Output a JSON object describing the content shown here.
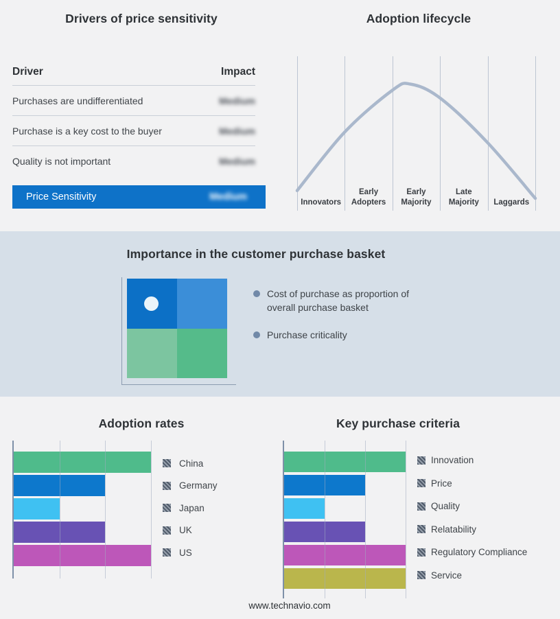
{
  "footer": {
    "text": "www.technavio.com"
  },
  "colors": {
    "page_bg": "#f2f2f3",
    "band_bg": "#d6dfe8",
    "accent_blue": "#0e72c8",
    "grid_line": "#bcc5d2",
    "axis_line": "#7e90a8",
    "curve": "#aab8cc",
    "bullet_dot": "#7189a8",
    "hatch_dark": "#4f5a69",
    "hatch_light": "#97a0ac",
    "quadrant_marker": "#eaf4fa"
  },
  "drivers_table": {
    "title": "Drivers of price sensitivity",
    "col_driver": "Driver",
    "col_impact": "Impact",
    "impact_blurred": true,
    "rows": [
      {
        "driver": "Purchases are undifferentiated",
        "impact": "Medium"
      },
      {
        "driver": "Purchase is a key cost to the buyer",
        "impact": "Medium"
      },
      {
        "driver": "Quality is not important",
        "impact": "Medium"
      }
    ],
    "highlight": {
      "driver": "Price Sensitivity",
      "impact": "Medium"
    }
  },
  "basket": {
    "title": "Importance in the customer purchase basket",
    "bullets": [
      "Cost of purchase as proportion of overall purchase basket",
      "Purchase criticality"
    ],
    "quadrant": {
      "top_left": "#0c70c6",
      "top_right": "#3b8ed8",
      "bottom_left": "#7cc5a0",
      "bottom_right": "#55bb8a",
      "marker": "white dot in top-left quadrant"
    }
  },
  "chart_data": [
    {
      "id": "adoption-lifecycle",
      "type": "line",
      "title": "Adoption lifecycle",
      "categories": [
        "Innovators",
        "Early Adopters",
        "Early Majority",
        "Late Majority",
        "Laggards"
      ],
      "description": "Bell-shaped adoption curve over five adopter segments; axes unlabeled",
      "gridlines": "6 vertical segment boundaries",
      "curve_points_norm": [
        [
          0,
          0.13
        ],
        [
          0.2,
          0.51
        ],
        [
          0.4,
          0.78
        ],
        [
          0.475,
          0.82
        ],
        [
          0.6,
          0.73
        ],
        [
          0.8,
          0.44
        ],
        [
          1,
          0.08
        ]
      ]
    },
    {
      "id": "adoption-rates",
      "type": "bar",
      "orientation": "horizontal",
      "title": "Adoption rates",
      "categories": [
        "China",
        "Germany",
        "Japan",
        "UK",
        "US"
      ],
      "values": [
        3,
        2,
        1,
        2,
        3
      ],
      "value_axis": {
        "min": 0,
        "max": 3,
        "gridlines": [
          0,
          1,
          2,
          3
        ],
        "tick_labels_shown": false
      },
      "colors": [
        "#4fbb8b",
        "#0d78cc",
        "#3fc1f2",
        "#6852b4",
        "#bd57b9"
      ],
      "legend_position": "right",
      "note": "bar lengths estimated in gridline units; value axis not labeled"
    },
    {
      "id": "key-purchase-criteria",
      "type": "bar",
      "orientation": "horizontal",
      "title": "Key purchase criteria",
      "categories": [
        "Innovation",
        "Price",
        "Quality",
        "Relatability",
        "Regulatory Compliance",
        "Service"
      ],
      "values": [
        3,
        2,
        1,
        2,
        3,
        3
      ],
      "value_axis": {
        "min": 0,
        "max": 3,
        "gridlines": [
          0,
          1,
          2,
          3
        ],
        "tick_labels_shown": false
      },
      "colors": [
        "#4fbb8b",
        "#0d78cc",
        "#3fc1f2",
        "#6852b4",
        "#bd57b9",
        "#bab64c"
      ],
      "legend_position": "right",
      "note": "bar lengths estimated in gridline units; value axis not labeled"
    }
  ]
}
